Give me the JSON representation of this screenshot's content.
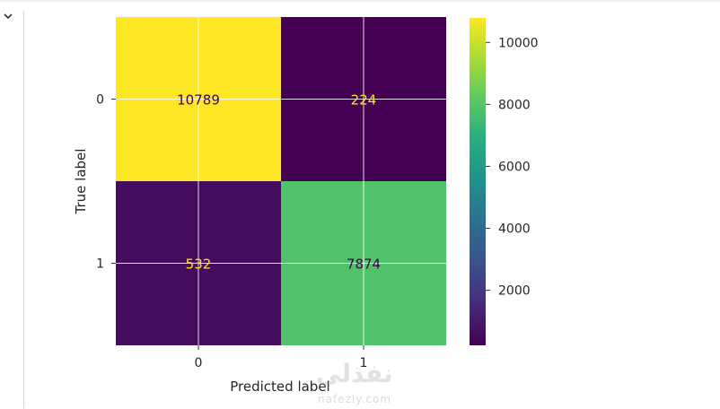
{
  "notebook": {
    "collapse_icon": "chevron-down-icon"
  },
  "chart_data": {
    "type": "heatmap",
    "title": "",
    "xlabel": "Predicted label",
    "ylabel": "True label",
    "x_categories": [
      "0",
      "1"
    ],
    "y_categories": [
      "0",
      "1"
    ],
    "matrix": [
      [
        10789,
        224
      ],
      [
        532,
        7874
      ]
    ],
    "colormap": "viridis",
    "colorbar": {
      "range": [
        224,
        10789
      ],
      "ticks": [
        2000,
        4000,
        6000,
        8000,
        10000
      ]
    },
    "grid": true,
    "text_colors": {
      "dark": "#440154",
      "light": "#fde725"
    }
  },
  "watermark": {
    "logo_text": "نفذلي",
    "url": "nafezly.com"
  }
}
